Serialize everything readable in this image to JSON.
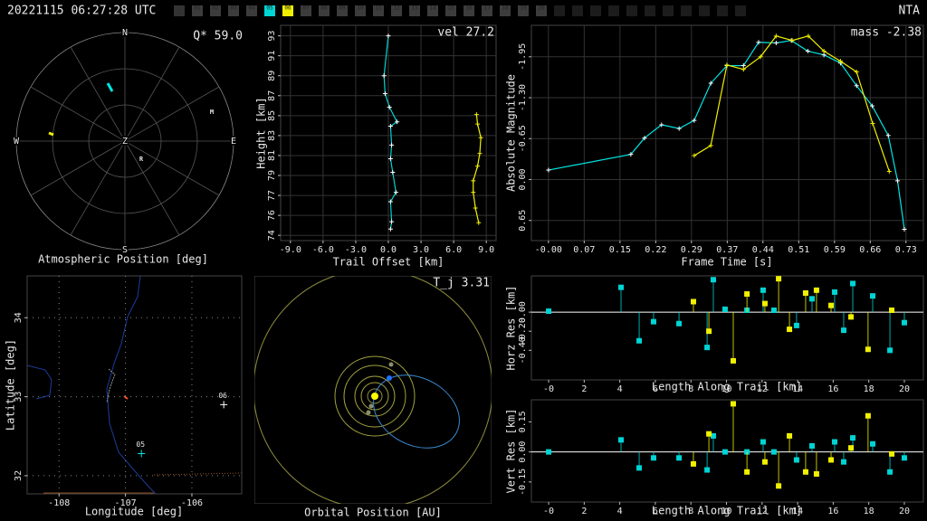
{
  "header": {
    "timestamp": "20221115 06:27:28 UTC",
    "code": "NTA",
    "stations": [
      {
        "label": "01",
        "color": "#3c3c3c"
      },
      {
        "label": "02",
        "color": "#3c3c3c"
      },
      {
        "label": "03",
        "color": "#3c3c3c"
      },
      {
        "label": "04",
        "color": "#3c3c3c"
      },
      {
        "label": "05",
        "color": "#00d4d4"
      },
      {
        "label": "06",
        "color": "#f0f000"
      },
      {
        "label": "07",
        "color": "#3c3c3c"
      },
      {
        "label": "08",
        "color": "#3c3c3c"
      },
      {
        "label": "09",
        "color": "#3c3c3c"
      },
      {
        "label": "10",
        "color": "#3c3c3c"
      },
      {
        "label": "11",
        "color": "#3c3c3c"
      },
      {
        "label": "12",
        "color": "#3c3c3c"
      },
      {
        "label": "13",
        "color": "#3c3c3c"
      },
      {
        "label": "14",
        "color": "#3c3c3c"
      },
      {
        "label": "15",
        "color": "#3c3c3c"
      },
      {
        "label": "16",
        "color": "#3c3c3c"
      },
      {
        "label": "17",
        "color": "#3c3c3c"
      },
      {
        "label": "18",
        "color": "#3c3c3c"
      },
      {
        "label": "19",
        "color": "#3c3c3c"
      },
      {
        "label": "20",
        "color": "#3c3c3c"
      }
    ]
  },
  "chart_data": [
    {
      "type": "polar",
      "annotation": "Q* 59.0",
      "xlabel": "Atmospheric Position [deg]",
      "directions": [
        "N",
        "E",
        "S",
        "W"
      ],
      "center": "Z",
      "markers": [
        "M",
        "R"
      ]
    },
    {
      "type": "line",
      "annotation": "vel 27.2",
      "xlabel": "Trail Offset [km]",
      "ylabel": "Height [km]",
      "xlim": [
        -9.9,
        9.9
      ],
      "ylim": [
        73.1,
        93.6
      ],
      "xticks": [
        {
          "value": -9,
          "label": "-9.0"
        },
        {
          "value": -6,
          "label": "-6.0"
        },
        {
          "value": -3,
          "label": "-3.0"
        },
        {
          "value": 0,
          "label": "0.0"
        },
        {
          "value": 3,
          "label": "3.0"
        },
        {
          "value": 6,
          "label": "6.0"
        },
        {
          "value": 9,
          "label": "9.0"
        }
      ],
      "yticks": [
        {
          "value": 73.6,
          "label": "74"
        },
        {
          "value": 75.5,
          "label": "76"
        },
        {
          "value": 77.4,
          "label": "77"
        },
        {
          "value": 79.3,
          "label": "79"
        },
        {
          "value": 81.2,
          "label": "81"
        },
        {
          "value": 83.1,
          "label": "83"
        },
        85,
        {
          "value": 86.9,
          "label": "87"
        },
        {
          "value": 88.8,
          "label": "89"
        },
        {
          "value": 90.7,
          "label": "91"
        },
        {
          "value": 92.6,
          "label": "93"
        }
      ],
      "grid": true,
      "marker": "plus",
      "series": [
        {
          "color": "#00d4d4",
          "x": [
            0.0,
            -0.4,
            -0.3,
            0.1,
            0.8,
            0.2,
            0.3,
            0.2,
            0.4,
            0.7,
            0.2,
            0.3,
            0.2
          ],
          "values": [
            92.6,
            88.8,
            87.1,
            85.8,
            84.4,
            84.0,
            82.2,
            80.9,
            79.6,
            77.7,
            76.8,
            74.9,
            74.2
          ]
        },
        {
          "color": "#f0f000",
          "x": [
            8.1,
            8.2,
            8.5,
            8.4,
            8.2,
            7.8,
            7.8,
            8.0,
            8.3
          ],
          "values": [
            85.1,
            84.2,
            82.9,
            81.4,
            80.2,
            78.8,
            77.7,
            76.2,
            74.8
          ]
        }
      ]
    },
    {
      "type": "line",
      "annotation": "mass -2.38",
      "xlabel": "Frame Time [s]",
      "ylabel": "Absolute Magnitude",
      "xlim": [
        -0.035,
        0.769
      ],
      "ylim": [
        -2.45,
        0.97
      ],
      "y_inverted": true,
      "xticks": [
        {
          "value": 0,
          "label": "-0.00"
        },
        {
          "value": 0.0733,
          "label": "0.07"
        },
        {
          "value": 0.1467,
          "label": "0.15"
        },
        {
          "value": 0.22,
          "label": "0.22"
        },
        {
          "value": 0.2933,
          "label": "0.29"
        },
        {
          "value": 0.3667,
          "label": "0.37"
        },
        {
          "value": 0.44,
          "label": "0.44"
        },
        {
          "value": 0.5133,
          "label": "0.51"
        },
        {
          "value": 0.5867,
          "label": "0.59"
        },
        {
          "value": 0.66,
          "label": "0.66"
        },
        {
          "value": 0.7333,
          "label": "0.73"
        }
      ],
      "yticks": [
        -1.95,
        {
          "value": -1.3,
          "label": "-1.30"
        },
        -0.65,
        {
          "value": 0,
          "label": "0.00"
        },
        0.65
      ],
      "grid": true,
      "marker": "plus",
      "series": [
        {
          "color": "#00e5e5",
          "x": [
            0.0,
            0.169,
            0.197,
            0.232,
            0.268,
            0.299,
            0.333,
            0.366,
            0.4,
            0.431,
            0.467,
            0.498,
            0.532,
            0.565,
            0.599,
            0.632,
            0.664,
            0.697,
            0.716,
            0.73
          ],
          "values": [
            -0.15,
            -0.4,
            -0.66,
            -0.87,
            -0.81,
            -0.94,
            -1.53,
            -1.81,
            -1.81,
            -2.18,
            -2.17,
            -2.21,
            -2.04,
            -1.98,
            -1.85,
            -1.49,
            -1.17,
            -0.7,
            0.02,
            0.79
          ]
        },
        {
          "color": "#f0f000",
          "x": [
            0.299,
            0.333,
            0.366,
            0.4,
            0.435,
            0.467,
            0.5,
            0.533,
            0.565,
            0.599,
            0.632,
            0.665,
            0.699
          ],
          "values": [
            -0.38,
            -0.54,
            -1.82,
            -1.75,
            -1.95,
            -2.28,
            -2.21,
            -2.28,
            -2.04,
            -1.88,
            -1.71,
            -0.89,
            -0.13
          ]
        }
      ]
    },
    {
      "type": "map",
      "xlabel": "Longitude [deg]",
      "ylabel": "Latitude [deg]",
      "xlim": [
        -108.48,
        -105.25
      ],
      "ylim": [
        31.77,
        34.53
      ],
      "xticks": [
        -108,
        -107,
        -106
      ],
      "yticks": [
        32,
        33,
        34
      ],
      "grid": true,
      "stations": [
        {
          "label": "06",
          "lon": -105.52,
          "lat": 32.9,
          "color": "#ffffff"
        },
        {
          "label": "05",
          "lon": -106.76,
          "lat": 32.28,
          "color": "#00e5e5"
        }
      ]
    },
    {
      "type": "orbit",
      "annotation": "T_j 3.31",
      "xlabel": "Orbital Position [AU]"
    },
    {
      "type": "stem",
      "xlabel": "Length Along Trail [km]",
      "ylabel": "Horz Res [km]",
      "xlim": [
        -0.97,
        21.07
      ],
      "ylim": [
        -0.71,
        0.38
      ],
      "xticks": [
        {
          "value": 0,
          "label": "-0"
        },
        2,
        4,
        6,
        8,
        10,
        12,
        14,
        16,
        18,
        20
      ],
      "yticks": [
        {
          "value": -0.4,
          "label": "-0.40"
        },
        {
          "value": -0.2,
          "label": "-0.20"
        },
        {
          "value": 0,
          "label": "0.00"
        }
      ],
      "grid": false,
      "marker": "square",
      "series": [
        {
          "color": "#00d4d4",
          "x": [
            0,
            4.07,
            5.09,
            5.9,
            7.33,
            8.91,
            9.26,
            9.92,
            11.15,
            12.06,
            12.67,
            13.94,
            14.81,
            16.08,
            16.59,
            17.1,
            18.22,
            19.19,
            20.0
          ],
          "values": [
            0.01,
            0.26,
            -0.3,
            -0.1,
            -0.12,
            -0.37,
            0.34,
            0.03,
            0.02,
            0.23,
            0.02,
            -0.14,
            0.14,
            0.21,
            -0.19,
            0.3,
            0.17,
            -0.4,
            -0.11
          ]
        },
        {
          "color": "#f0f000",
          "x": [
            8.14,
            9.01,
            10.38,
            11.15,
            12.16,
            12.93,
            13.54,
            14.45,
            15.06,
            15.88,
            17.0,
            17.96,
            19.29
          ],
          "values": [
            0.11,
            -0.2,
            -0.51,
            0.19,
            0.09,
            0.35,
            -0.18,
            0.2,
            0.23,
            0.07,
            -0.05,
            -0.39,
            0.02
          ]
        }
      ]
    },
    {
      "type": "stem",
      "xlabel": "Length Along Trail [km]",
      "ylabel": "Vert Res [km]",
      "xlim": [
        -0.97,
        21.07
      ],
      "ylim": [
        -0.25,
        0.26
      ],
      "xticks": [
        {
          "value": 0,
          "label": "-0"
        },
        2,
        4,
        6,
        8,
        10,
        12,
        14,
        16,
        18,
        20
      ],
      "yticks": [
        -0.15,
        {
          "value": 0,
          "label": "0.00"
        },
        0.15
      ],
      "grid": false,
      "marker": "square",
      "series": [
        {
          "color": "#00d4d4",
          "x": [
            0,
            4.07,
            5.09,
            5.9,
            7.33,
            8.91,
            9.26,
            9.92,
            11.15,
            12.06,
            12.67,
            13.94,
            14.81,
            16.08,
            16.59,
            17.1,
            18.22,
            19.19,
            20.0
          ],
          "values": [
            0,
            0.06,
            -0.08,
            -0.03,
            -0.03,
            -0.09,
            0.08,
            0,
            0,
            0.05,
            0,
            -0.04,
            0.03,
            0.05,
            -0.05,
            0.07,
            0.04,
            -0.1,
            -0.03
          ]
        },
        {
          "color": "#f0f000",
          "x": [
            8.14,
            9.01,
            10.38,
            11.15,
            12.16,
            12.93,
            13.54,
            14.45,
            15.06,
            15.88,
            17.0,
            17.96,
            19.29
          ],
          "values": [
            -0.06,
            0.09,
            0.24,
            -0.1,
            -0.05,
            -0.17,
            0.08,
            -0.1,
            -0.11,
            -0.04,
            0.02,
            0.18,
            -0.01
          ]
        }
      ]
    }
  ]
}
